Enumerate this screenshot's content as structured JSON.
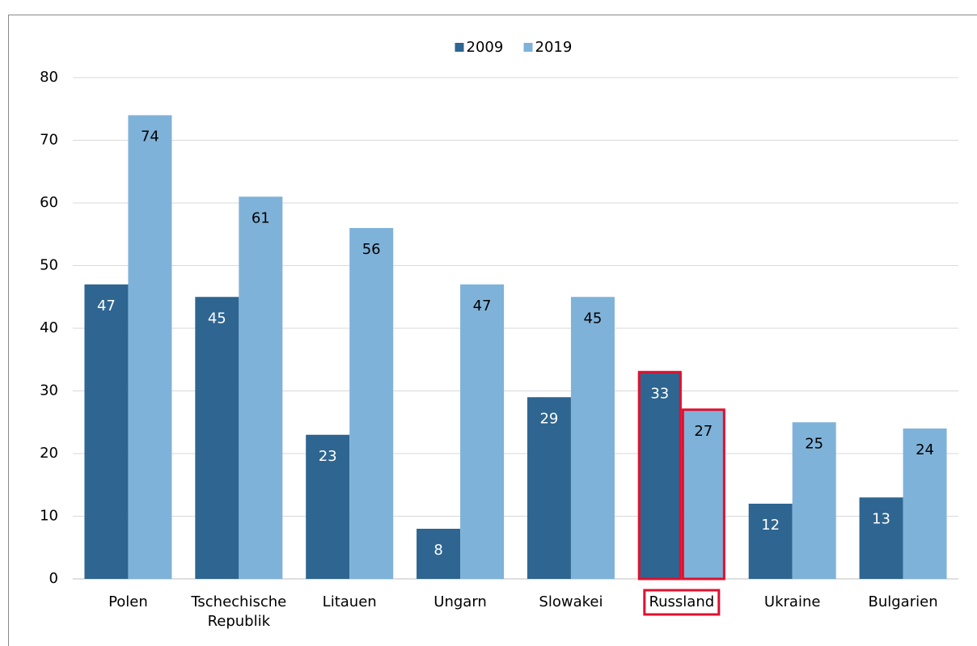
{
  "chart_data": {
    "type": "bar",
    "categories": [
      "Polen",
      "Tschechische Republik",
      "Litauen",
      "Ungarn",
      "Slowakei",
      "Russland",
      "Ukraine",
      "Bulgarien"
    ],
    "series": [
      {
        "name": "2009",
        "color": "#2e6591",
        "values": [
          47,
          45,
          23,
          8,
          29,
          33,
          12,
          13
        ]
      },
      {
        "name": "2019",
        "color": "#7fb2d9",
        "values": [
          74,
          61,
          56,
          47,
          45,
          27,
          25,
          24
        ]
      }
    ],
    "ylim": [
      0,
      80
    ],
    "yticks": [
      0,
      10,
      20,
      30,
      40,
      50,
      60,
      70,
      80
    ],
    "grid": true,
    "legend": "top",
    "highlight": "Russland",
    "highlight_color": "#e0102f"
  }
}
